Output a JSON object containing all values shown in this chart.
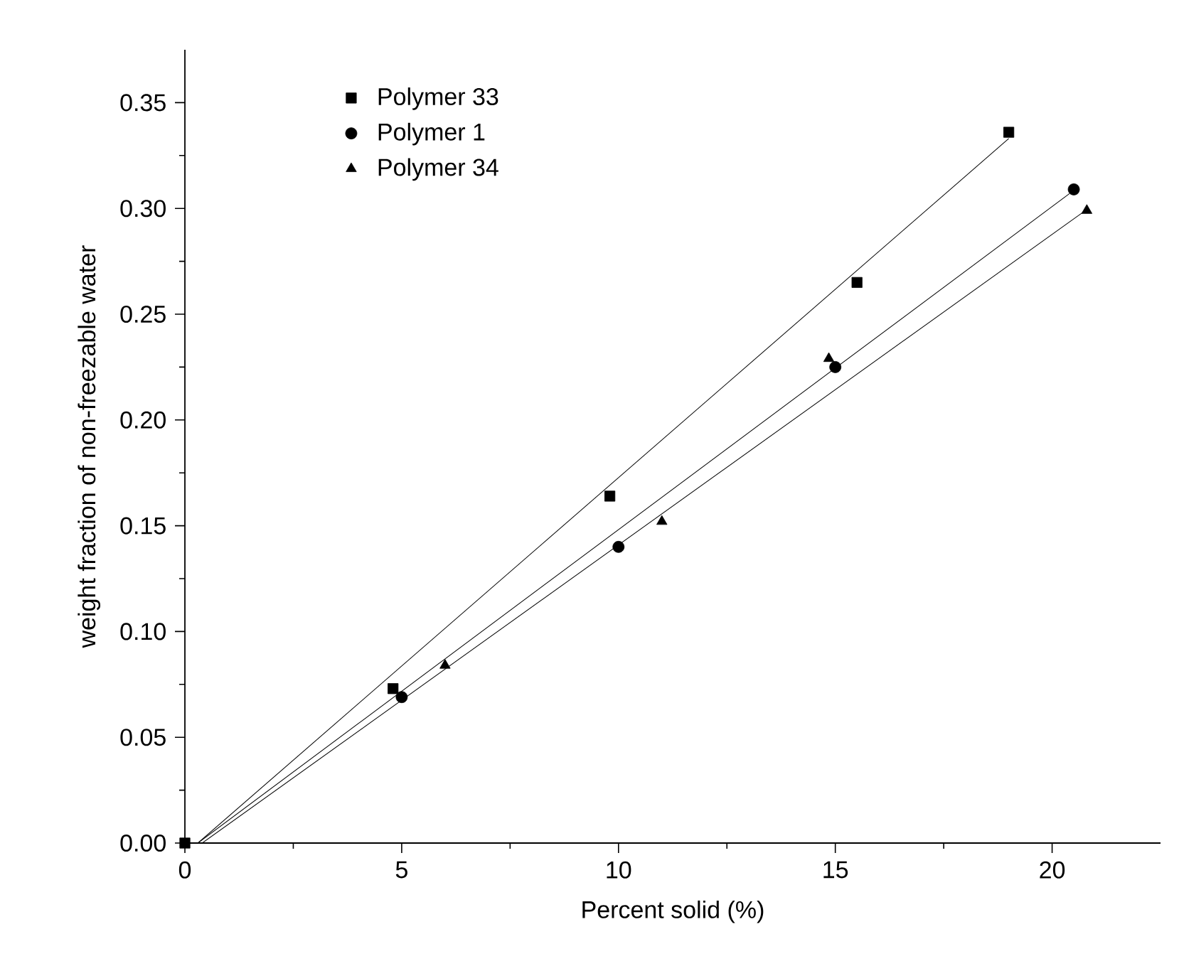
{
  "chart_data": {
    "type": "scatter",
    "xlabel": "Percent solid (%)",
    "ylabel": "weight fraction of non-freezable water",
    "xlim": [
      0,
      22.5
    ],
    "ylim": [
      0,
      0.375
    ],
    "xticks": [
      0,
      5,
      10,
      15,
      20
    ],
    "yticks": [
      {
        "value": 0,
        "label": "0.00"
      },
      {
        "value": 0.05,
        "label": "0.05"
      },
      {
        "value": 0.1,
        "label": "0.10"
      },
      {
        "value": 0.15,
        "label": "0.15"
      },
      {
        "value": 0.2,
        "label": "0.20"
      },
      {
        "value": 0.25,
        "label": "0.25"
      },
      {
        "value": 0.3,
        "label": "0.30"
      },
      {
        "value": 0.35,
        "label": "0.35"
      }
    ],
    "grid": false,
    "legend": "top left",
    "series": [
      {
        "name": "Polymer 33",
        "color": "#000000",
        "marker": "square",
        "x": [
          0,
          4.8,
          9.8,
          15.5,
          19.0
        ],
        "values": [
          0,
          0.073,
          0.164,
          0.265,
          0.336
        ]
      },
      {
        "name": "Polymer 1",
        "color": "#000000",
        "marker": "circle",
        "x": [
          5.0,
          10.0,
          15.0,
          20.5
        ],
        "values": [
          0.069,
          0.14,
          0.225,
          0.309
        ]
      },
      {
        "name": "Polymer 34",
        "color": "#000000",
        "marker": "triangle",
        "x": [
          6.0,
          11.0,
          14.85,
          20.8
        ],
        "values": [
          0.084,
          0.152,
          0.229,
          0.299
        ]
      },
      {
        "type": "line",
        "color": "#000000",
        "marker": "none",
        "line_style": "solid",
        "x": [
          0.3,
          19.0
        ],
        "values": [
          0,
          0.333
        ]
      },
      {
        "type": "line",
        "color": "#000000",
        "marker": "none",
        "line_style": "solid",
        "x": [
          0.3,
          20.4
        ],
        "values": [
          0,
          0.307
        ]
      },
      {
        "type": "line",
        "color": "#000000",
        "marker": "none",
        "line_style": "solid",
        "x": [
          0.4,
          20.7
        ],
        "values": [
          0,
          0.298
        ]
      }
    ]
  }
}
